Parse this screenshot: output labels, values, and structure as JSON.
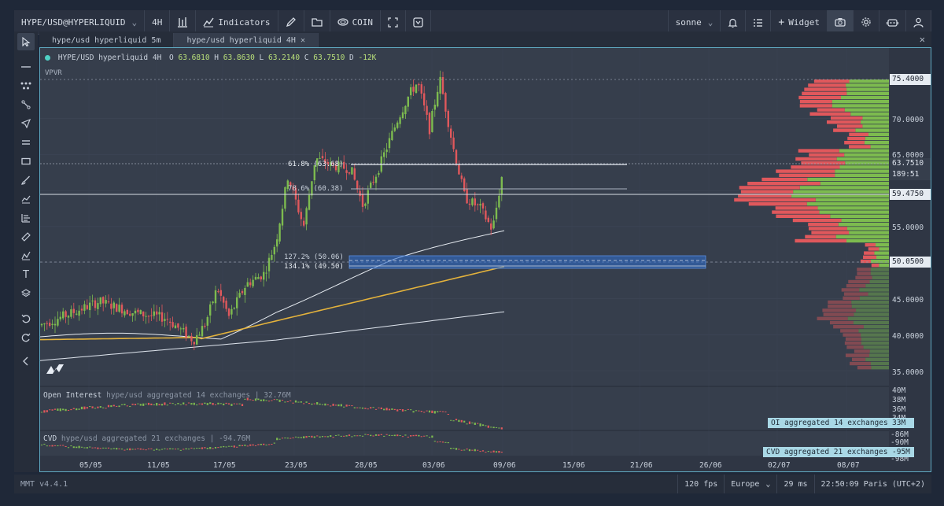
{
  "toolbar": {
    "symbol": "HYPE/USD@HYPERLIQUID",
    "interval": "4H",
    "indicators_label": "Indicators",
    "coin_label": "COIN",
    "layout_name": "sonne",
    "widget_label": "Widget"
  },
  "tabs": [
    {
      "label": "hype/usd hyperliquid 5m"
    },
    {
      "label": "hype/usd hyperliquid 4H"
    }
  ],
  "legend": {
    "title": "HYPE/USD hyperliquid 4H",
    "o_label": "O",
    "o": "63.6810",
    "h_label": "H",
    "h": "63.8630",
    "l_label": "L",
    "l": "63.2140",
    "c_label": "C",
    "c": "63.7510",
    "d_label": "D",
    "d": "-12K"
  },
  "vpvr_label": "VPVR",
  "fib_labels": {
    "f618": "61.8% (63.68)",
    "f786": "78.6% (60.38)",
    "f1272": "127.2% (50.06)",
    "f1341": "134.1% (49.50)"
  },
  "price_axis": {
    "ticks": [
      "75.4000",
      "70.0000",
      "65.0000",
      "55.0000",
      "45.0000",
      "40.0000",
      "35.0000"
    ],
    "current_price": "63.7510",
    "countdown": "189:51",
    "level_a": "59.4750",
    "level_b": "50.0500"
  },
  "oi_panel": {
    "title": "Open Interest",
    "subtitle": "hype/usd aggregated 14 exchanges | 32.76M",
    "ticks": [
      "40M",
      "38M",
      "36M",
      "34M"
    ],
    "tag": "OI aggregated 14 exchanges",
    "value": "33M"
  },
  "cvd_panel": {
    "title": "CVD",
    "subtitle": "hype/usd aggregated 21 exchanges | -94.76M",
    "ticks": [
      "-86M",
      "-90M",
      "-98M"
    ],
    "tag": "CVD aggregated 21 exchanges",
    "value": "-95M"
  },
  "time_axis": [
    "05/05",
    "11/05",
    "17/05",
    "23/05",
    "28/05",
    "03/06",
    "09/06",
    "15/06",
    "21/06",
    "26/06",
    "02/07",
    "08/07"
  ],
  "status": {
    "version": "MMT v4.4.1",
    "fps": "120 fps",
    "region": "Europe",
    "latency": "29 ms",
    "clock": "22:50:09 Paris (UTC+2)"
  },
  "colors": {
    "up": "#7dbb4f",
    "down": "#e0585c",
    "accent": "#5fa8c0",
    "ma_yellow": "#e3b23c",
    "zone": "#2f6fd1"
  },
  "chart_data": {
    "type": "candlestick",
    "ylim": [
      35,
      77
    ],
    "levels": [
      75.4,
      63.751,
      59.475,
      50.05
    ]
  }
}
